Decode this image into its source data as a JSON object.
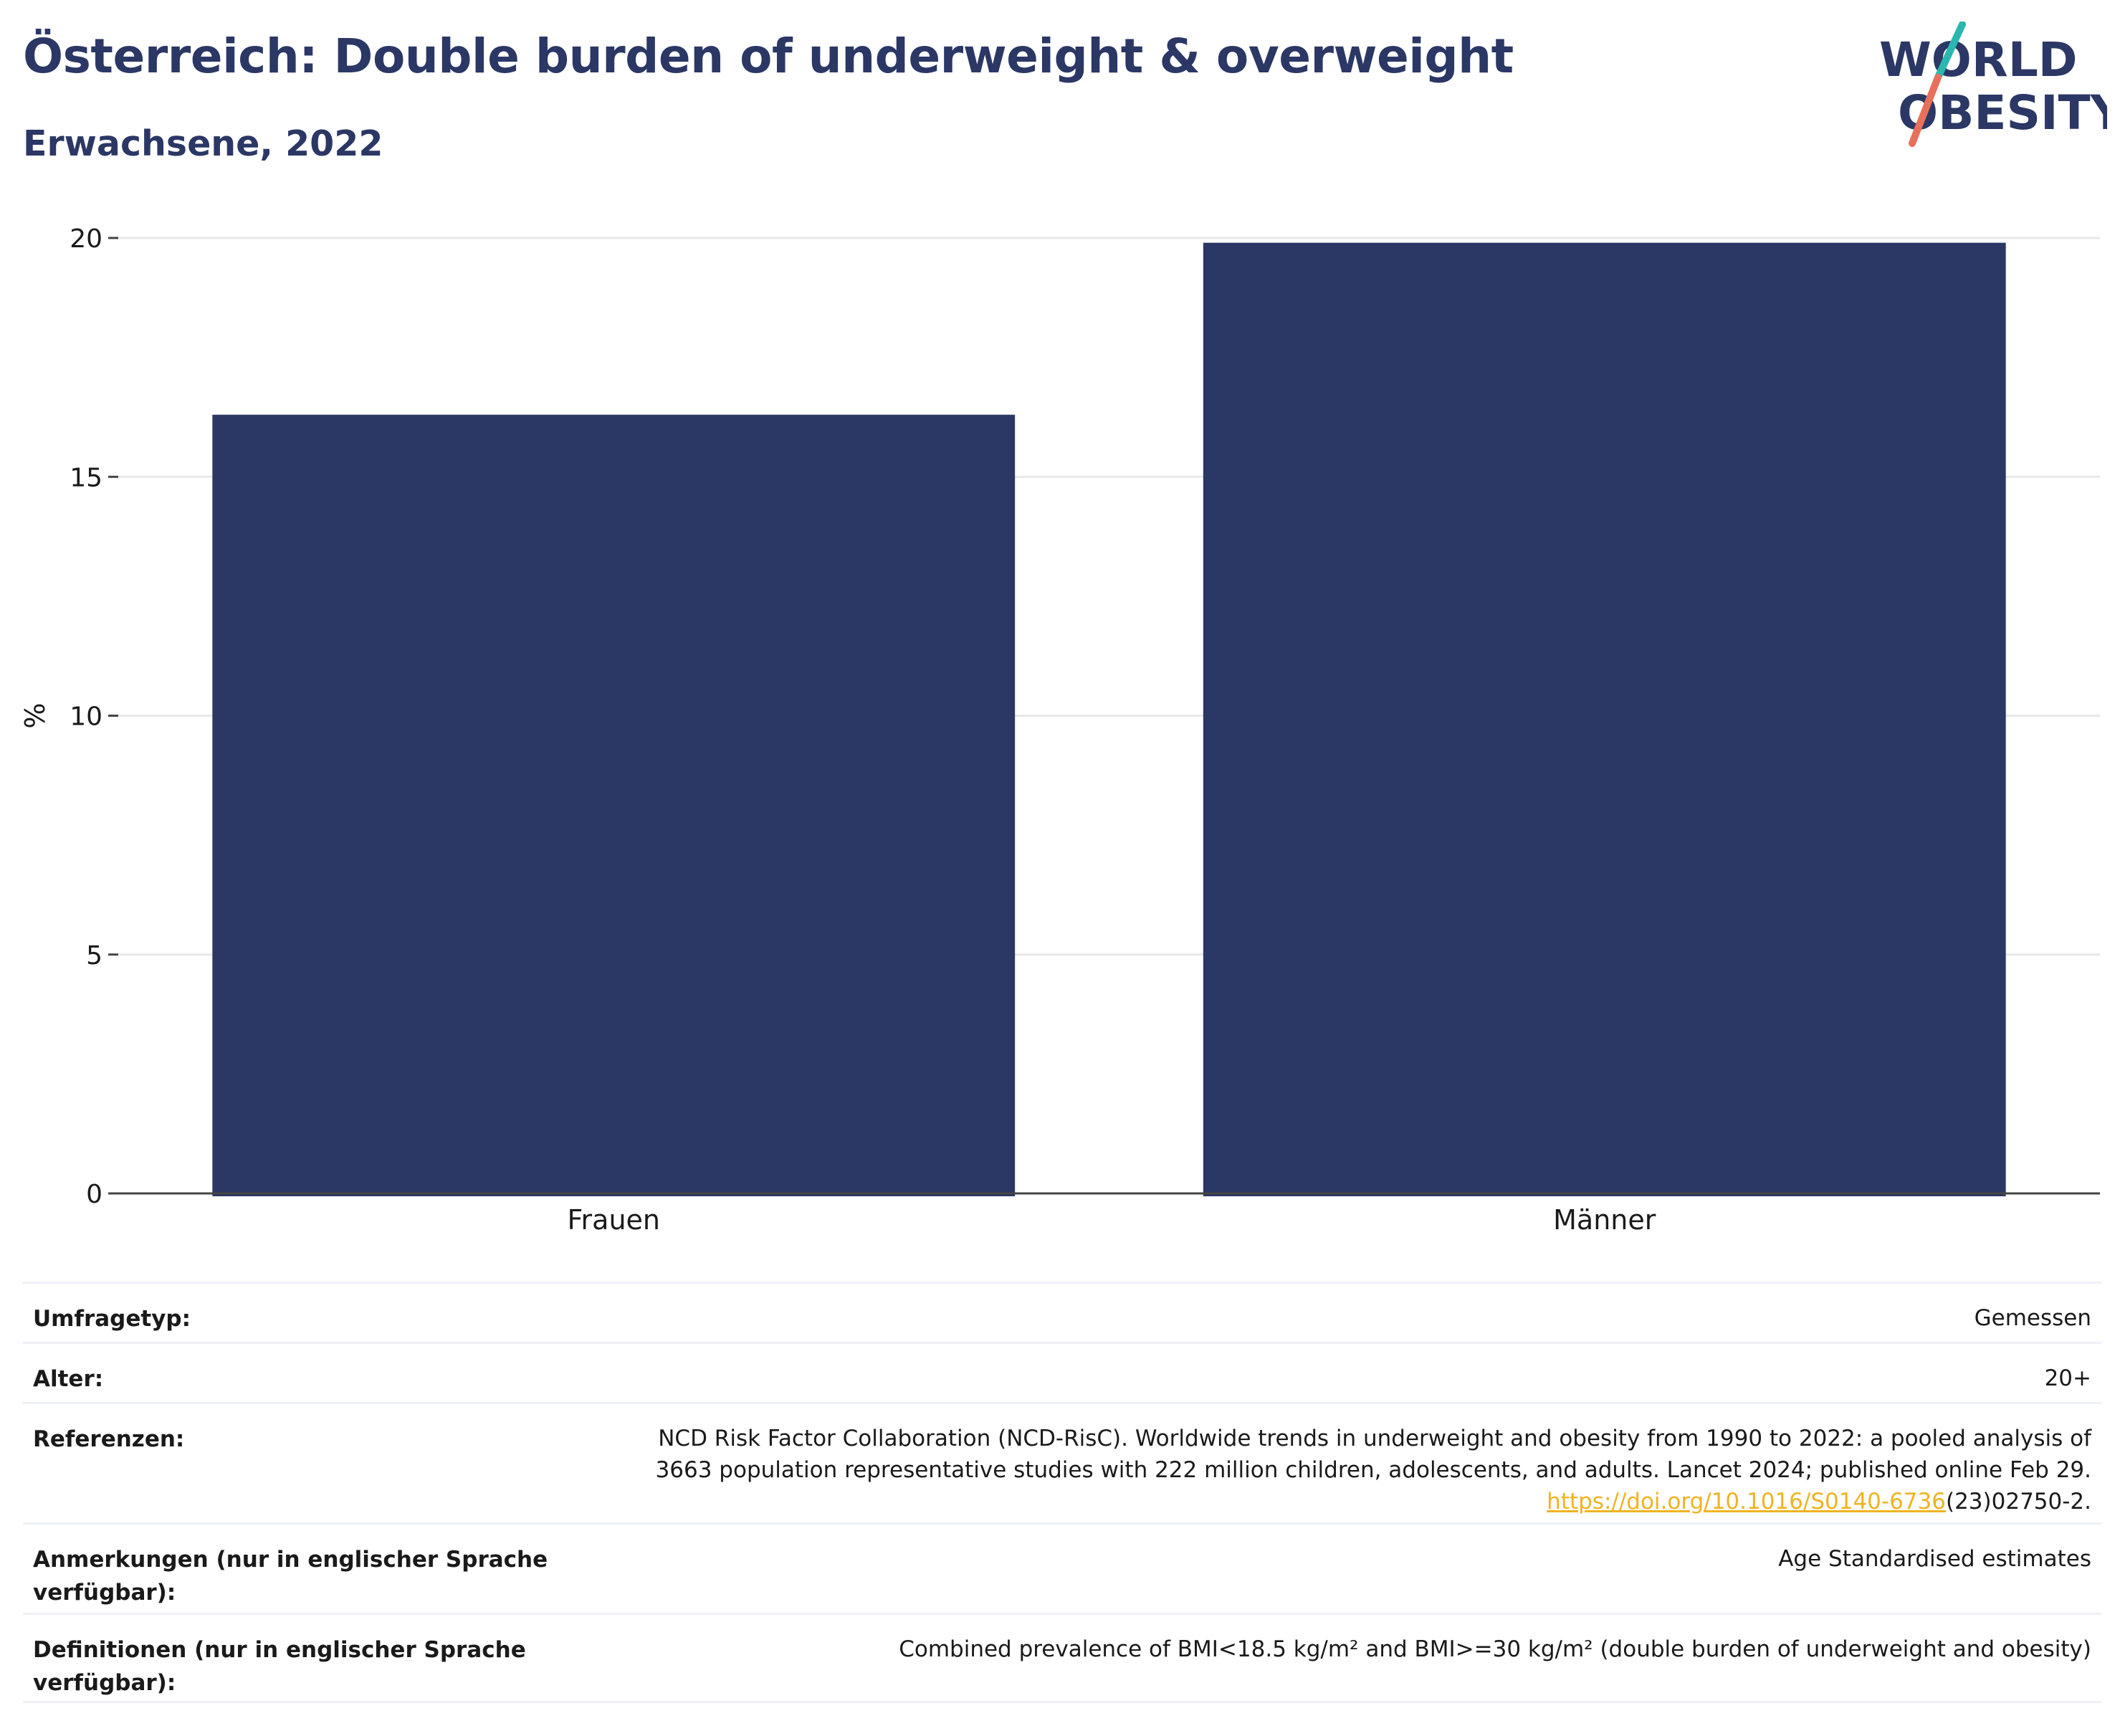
{
  "header": {
    "title": "Österreich: Double burden of underweight & overweight",
    "subtitle": "Erwachsene, 2022"
  },
  "logo": {
    "line1": "WORLD",
    "line2": "OBESITY",
    "colors": {
      "text": "#2b3765",
      "slash_top": "#2ab7b0",
      "slash_bottom": "#e8705a"
    }
  },
  "chart_data": {
    "type": "bar",
    "categories": [
      "Frauen",
      "Männer"
    ],
    "values": [
      16.3,
      19.9
    ],
    "title": "",
    "xlabel": "",
    "ylabel": "%",
    "ylim": [
      0,
      20
    ],
    "yticks": [
      0,
      5,
      10,
      15,
      20
    ],
    "grid": true,
    "bar_color": "#2b3765"
  },
  "meta": [
    {
      "label": "Umfragetyp:",
      "value": "Gemessen"
    },
    {
      "label": "Alter:",
      "value": "20+"
    },
    {
      "label": "Referenzen:",
      "value_line1": "NCD Risk Factor Collaboration (NCD-RisC). Worldwide trends in underweight and obesity from 1990 to 2022: a pooled analysis of",
      "value_line2": "3663 population representative studies with 222 million children, adolescents, and adults. Lancet 2024; published online Feb 29.",
      "link_text": "https://doi.org/10.1016/S0140-6736",
      "link_suffix": "(23)02750-2."
    },
    {
      "label": "Anmerkungen (nur in englischer Sprache verfügbar):",
      "value": "Age Standardised estimates"
    },
    {
      "label": "Definitionen (nur in englischer Sprache verfügbar):",
      "value": "Combined prevalence of BMI<18.5 kg/m² and BMI>=30 kg/m² (double burden of underweight and obesity)"
    }
  ]
}
